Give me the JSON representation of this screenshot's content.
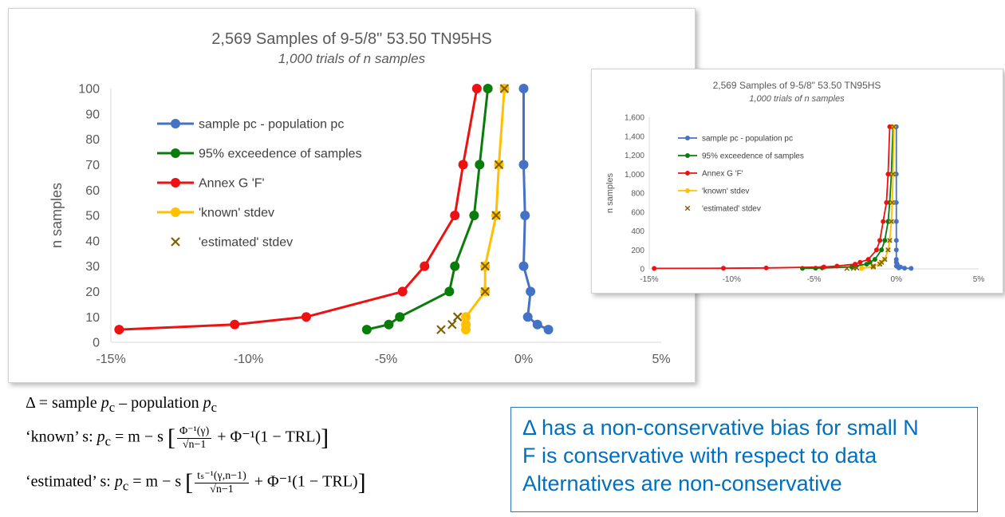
{
  "chart_data": [
    {
      "type": "line",
      "title": "2,569 Samples of 9-5/8\" 53.50 TN95HS",
      "subtitle": "1,000 trials of n samples",
      "ylabel": "n samples",
      "xlim": [
        -15,
        5
      ],
      "ylim": [
        0,
        100
      ],
      "xticks": [
        "-15%",
        "-10%",
        "-5%",
        "0%",
        "5%"
      ],
      "yticks": [
        "0",
        "10",
        "20",
        "30",
        "40",
        "50",
        "60",
        "70",
        "80",
        "90",
        "100"
      ],
      "legend_position": "left-inside",
      "series": [
        {
          "name": "sample pc - population pc",
          "color": "#4472c4",
          "style": "line-marker",
          "x": [
            0.9,
            0.5,
            0.15,
            0.25,
            0.0,
            0.05,
            0.0,
            0.0
          ],
          "y": [
            5,
            7,
            10,
            20,
            30,
            50,
            70,
            100
          ]
        },
        {
          "name": "95% exceedence of samples",
          "color": "#0a7c0a",
          "style": "line-marker",
          "x": [
            -5.7,
            -4.9,
            -4.5,
            -2.7,
            -2.5,
            -1.8,
            -1.6,
            -1.3
          ],
          "y": [
            5,
            7,
            10,
            20,
            30,
            50,
            70,
            100
          ]
        },
        {
          "name": "Annex G 'F'",
          "color": "#ee1111",
          "style": "line-marker",
          "x": [
            -14.7,
            -10.5,
            -7.9,
            -4.4,
            -3.6,
            -2.5,
            -2.2,
            -1.7
          ],
          "y": [
            5,
            7,
            10,
            20,
            30,
            50,
            70,
            100
          ]
        },
        {
          "name": "'known' stdev",
          "color": "#ffc000",
          "style": "line-marker",
          "x": [
            -2.1,
            -2.1,
            -2.1,
            -1.4,
            -1.4,
            -1.0,
            -0.9,
            -0.7
          ],
          "y": [
            5,
            7,
            10,
            20,
            30,
            50,
            70,
            100
          ]
        },
        {
          "name": "'estimated' stdev",
          "color": "#806000",
          "style": "x-marker",
          "x": [
            -3.0,
            -2.6,
            -2.4,
            -1.4,
            -1.4,
            -1.0,
            -0.9,
            -0.7
          ],
          "y": [
            5,
            7,
            10,
            20,
            30,
            50,
            70,
            100
          ]
        }
      ]
    },
    {
      "type": "line",
      "title": "2,569 Samples of 9-5/8\" 53.50 TN95HS",
      "subtitle": "1,000 trials of n samples",
      "ylabel": "n samples",
      "xlim": [
        -15,
        5
      ],
      "ylim": [
        0,
        1600
      ],
      "xticks": [
        "-15%",
        "-10%",
        "-5%",
        "0%",
        "5%"
      ],
      "yticks": [
        "0",
        "200",
        "400",
        "600",
        "800",
        "1,000",
        "1,200",
        "1,400",
        "1,600"
      ],
      "legend_position": "left-inside",
      "series": [
        {
          "name": "sample pc - population pc",
          "color": "#4472c4",
          "style": "line-marker",
          "x": [
            0.9,
            0.5,
            0.15,
            0.25,
            0.0,
            0.05,
            0.0,
            0.0,
            0.0,
            0.0,
            0.0,
            0.0,
            0.0,
            0.0
          ],
          "y": [
            5,
            7,
            10,
            20,
            30,
            50,
            70,
            100,
            200,
            300,
            500,
            700,
            1000,
            1500
          ]
        },
        {
          "name": "95% exceedence of samples",
          "color": "#0a7c0a",
          "style": "line-marker",
          "x": [
            -5.7,
            -4.9,
            -4.5,
            -2.7,
            -2.5,
            -1.8,
            -1.6,
            -1.3,
            -0.9,
            -0.7,
            -0.5,
            -0.4,
            -0.3,
            -0.2
          ],
          "y": [
            5,
            7,
            10,
            20,
            30,
            50,
            70,
            100,
            200,
            300,
            500,
            700,
            1000,
            1500
          ]
        },
        {
          "name": "Annex G 'F'",
          "color": "#ee1111",
          "style": "line-marker",
          "x": [
            -14.7,
            -10.5,
            -7.9,
            -4.4,
            -3.6,
            -2.5,
            -2.2,
            -1.7,
            -1.2,
            -1.0,
            -0.8,
            -0.6,
            -0.5,
            -0.4
          ],
          "y": [
            5,
            7,
            10,
            20,
            30,
            50,
            70,
            100,
            200,
            300,
            500,
            700,
            1000,
            1500
          ]
        },
        {
          "name": "'known' stdev",
          "color": "#ffc000",
          "style": "line-marker",
          "x": [
            -2.1,
            -2.1,
            -2.1,
            -1.4,
            -1.4,
            -1.0,
            -0.9,
            -0.7,
            -0.5,
            -0.4,
            -0.3,
            -0.25,
            -0.2,
            -0.15
          ],
          "y": [
            5,
            7,
            10,
            20,
            30,
            50,
            70,
            100,
            200,
            300,
            500,
            700,
            1000,
            1500
          ]
        },
        {
          "name": "'estimated' stdev",
          "color": "#806000",
          "style": "x-marker",
          "x": [
            -3.0,
            -2.6,
            -2.4,
            -1.4,
            -1.4,
            -1.0,
            -0.9,
            -0.7,
            -0.5,
            -0.4,
            -0.3,
            -0.25,
            -0.2,
            -0.15
          ],
          "y": [
            5,
            7,
            10,
            20,
            30,
            50,
            70,
            100,
            200,
            300,
            500,
            700,
            1000,
            1500
          ]
        }
      ]
    }
  ],
  "formulas": {
    "delta_prefix": "Δ = sample ",
    "delta_mid": " – population ",
    "p": "p",
    "c": "c",
    "known_label": "‘known’ s: ",
    "estimated_label": "‘estimated’ s: ",
    "rhs_m_s": "= m − s",
    "known_num": "Φ⁻¹(γ)",
    "estimated_num": "tₛ⁻¹(γ,n−1)",
    "den": "√n−1",
    "plus_term": "+ Φ⁻¹(1 − TRL)",
    "lbracket": "[",
    "rbracket": "]"
  },
  "callout": {
    "lines": [
      "Δ has a non-conservative bias for small N",
      "F is conservative with respect to data",
      "Alternatives are non-conservative"
    ]
  }
}
